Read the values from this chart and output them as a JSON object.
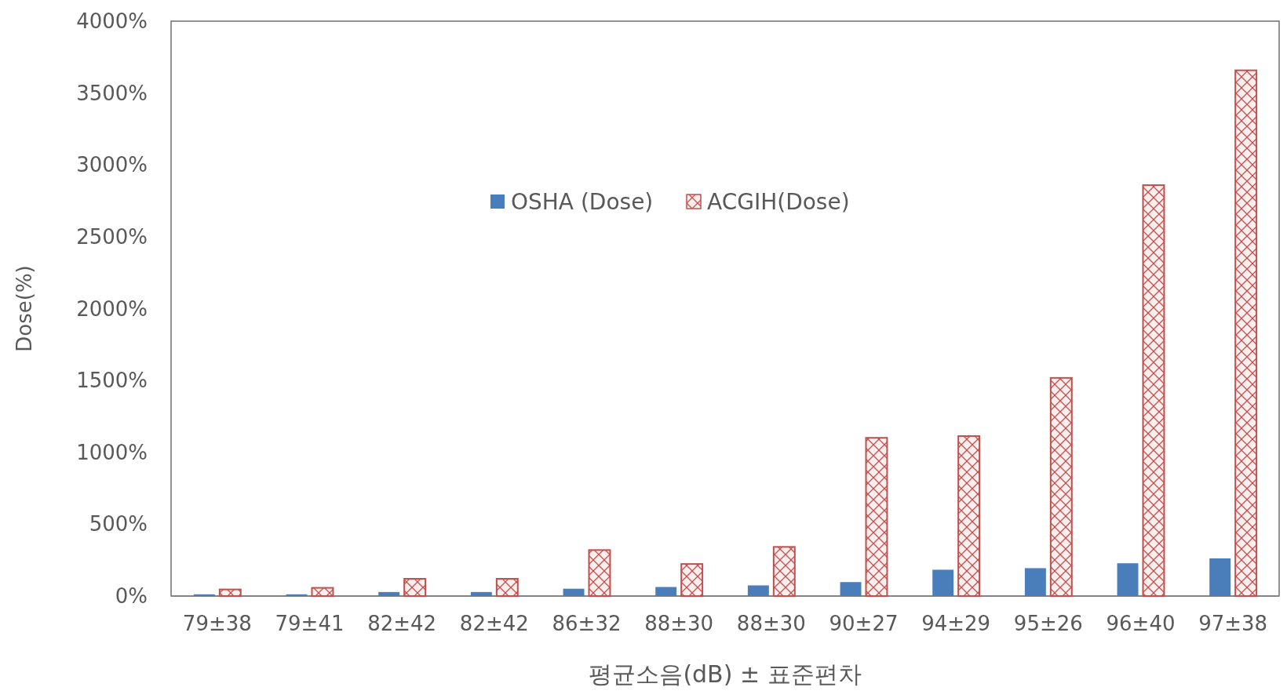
{
  "chart_data": {
    "type": "bar",
    "xlabel": "평균소음(dB) ± 표준편차",
    "ylabel": "Dose(%)",
    "categories": [
      "79±38",
      "79±41",
      "82±42",
      "82±42",
      "86±32",
      "88±30",
      "88±30",
      "90±27",
      "94±29",
      "95±26",
      "96±40",
      "97±38"
    ],
    "series": [
      {
        "name": "OSHA (Dose)",
        "color": "#4a7ebb",
        "values": [
          12,
          12,
          28,
          28,
          51,
          63,
          74,
          97,
          183,
          194,
          228,
          262
        ]
      },
      {
        "name": "ACGIH(Dose)",
        "color": "#c0504d",
        "values": [
          46,
          57,
          120,
          120,
          320,
          223,
          342,
          1101,
          1113,
          1518,
          2859,
          3658
        ]
      }
    ],
    "ylim": [
      0,
      4000
    ],
    "yticks": [
      {
        "value": 0,
        "label": "0%"
      },
      {
        "value": 500,
        "label": "500%"
      },
      {
        "value": 1000,
        "label": "1000%"
      },
      {
        "value": 1500,
        "label": "1500%"
      },
      {
        "value": 2000,
        "label": "2000%"
      },
      {
        "value": 2500,
        "label": "2500%"
      },
      {
        "value": 3000,
        "label": "3000%"
      },
      {
        "value": 3500,
        "label": "3500%"
      },
      {
        "value": 4000,
        "label": "4000%"
      }
    ],
    "grid": false,
    "legend": "top"
  }
}
